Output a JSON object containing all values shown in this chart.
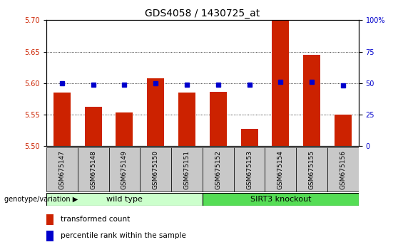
{
  "title": "GDS4058 / 1430725_at",
  "samples": [
    "GSM675147",
    "GSM675148",
    "GSM675149",
    "GSM675150",
    "GSM675151",
    "GSM675152",
    "GSM675153",
    "GSM675154",
    "GSM675155",
    "GSM675156"
  ],
  "red_values": [
    5.585,
    5.562,
    5.553,
    5.608,
    5.585,
    5.586,
    5.528,
    5.7,
    5.645,
    5.55
  ],
  "blue_percentiles": [
    50,
    49,
    49,
    50,
    49,
    49,
    49,
    51,
    51,
    48
  ],
  "ylim": [
    5.5,
    5.7
  ],
  "yticks": [
    5.5,
    5.55,
    5.6,
    5.65,
    5.7
  ],
  "right_ylim": [
    0,
    100
  ],
  "right_yticks": [
    0,
    25,
    50,
    75,
    100
  ],
  "bar_color": "#CC2200",
  "dot_color": "#0000CC",
  "bar_width": 0.55,
  "bg_color": "#C8C8C8",
  "wt_color_light": "#BBFFBB",
  "wt_color": "#AADDAA",
  "sirt_color": "#44CC44",
  "left_axis_color": "#CC2200",
  "right_axis_color": "#0000CC",
  "genotype_label": "genotype/variation",
  "legend_red": "transformed count",
  "legend_blue": "percentile rank within the sample",
  "title_fontsize": 10,
  "tick_fontsize": 7,
  "sample_fontsize": 6.5,
  "legend_fontsize": 7.5
}
